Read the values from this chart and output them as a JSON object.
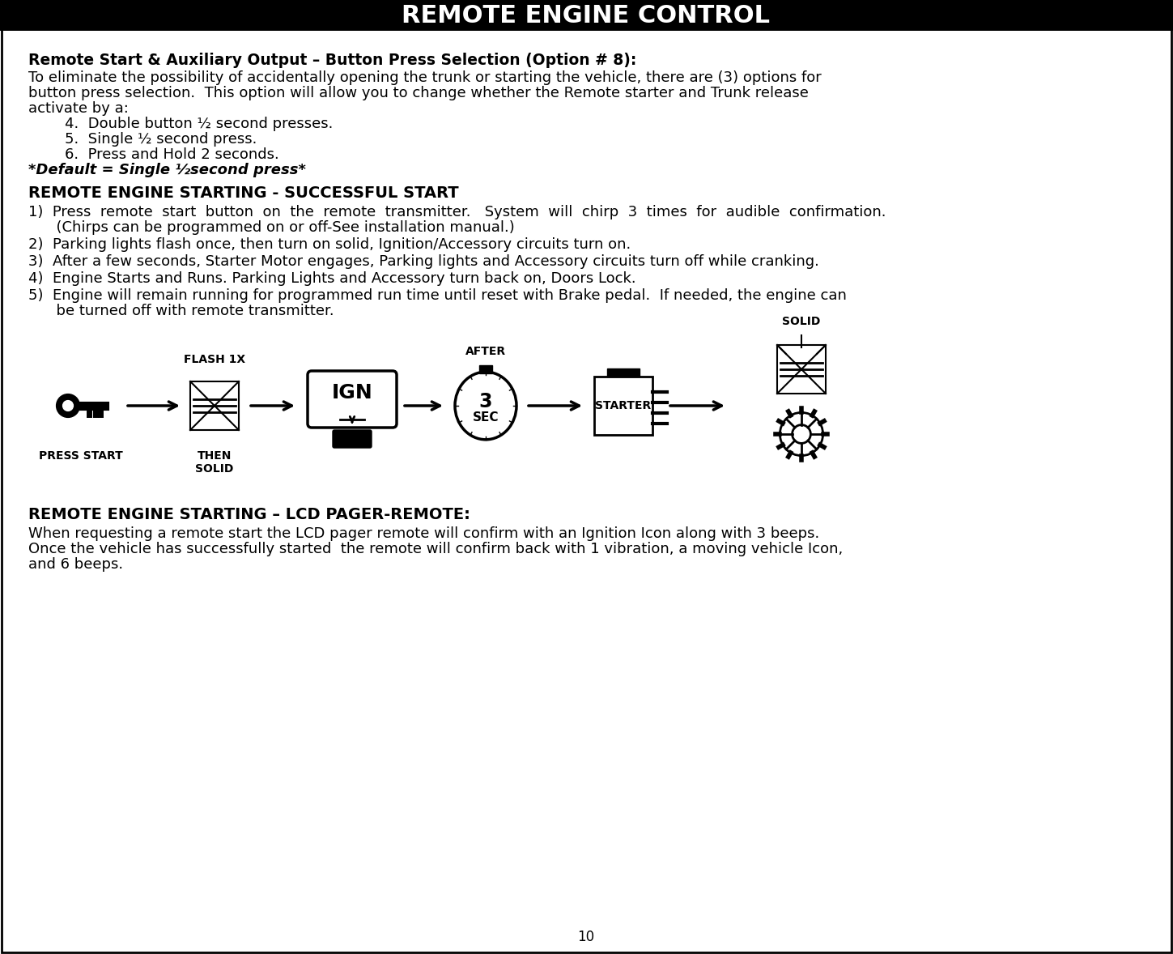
{
  "title": "REMOTE ENGINE CONTROL",
  "title_bg": "#000000",
  "title_color": "#ffffff",
  "page_bg": "#ffffff",
  "text_color": "#000000",
  "header_section": {
    "bold_title": "Remote Start & Auxiliary Output – Button Press Selection (Option # 8):",
    "intro_text": "To eliminate the possibility of accidentally opening the trunk or starting the vehicle, there are (3) options for\nbutton press selection.  This option will allow you to change whether the Remote starter and Trunk release\nactivate by a:",
    "list_items": [
      "4.  Double button ½ second presses.",
      "5.  Single ½ second press.",
      "6.  Press and Hold 2 seconds."
    ],
    "default_text": "*Default = Single ½​second press*"
  },
  "section2_title": "REMOTE ENGINE STARTING - SUCCESSFUL START",
  "steps": [
    "1)  Press  remote  start  button  on  the  remote  transmitter.   System  will  chirp  3  times  for  audible  confirmation.\n      (Chirps can be programmed on or off-See installation manual.)",
    "2)  Parking lights flash once, then turn on solid, Ignition/Accessory circuits turn on.",
    "3)  After a few seconds, Starter Motor engages, Parking lights and Accessory circuits turn off while cranking.",
    "4)  Engine Starts and Runs. Parking Lights and Accessory turn back on, Doors Lock.",
    "5)  Engine will remain running for programmed run time until reset with Brake pedal.  If needed, the engine can\n      be turned off with remote transmitter."
  ],
  "section3_title": "REMOTE ENGINE STARTING – LCD PAGER-REMOTE:",
  "section3_text": "When requesting a remote start the LCD pager remote will confirm with an Ignition Icon along with 3 beeps.\nOnce the vehicle has successfully started  the remote will confirm back with 1 vibration, a moving vehicle Icon,\nand 6 beeps.",
  "page_number": "10",
  "diagram_labels": {
    "press_start": "PRESS START",
    "flash_1x": "FLASH 1X",
    "then_solid": "THEN\nSOLID",
    "ign": "IGN",
    "after": "AFTER",
    "sec": "3\nSEC",
    "starter": "STARTER",
    "solid": "SOLID"
  }
}
